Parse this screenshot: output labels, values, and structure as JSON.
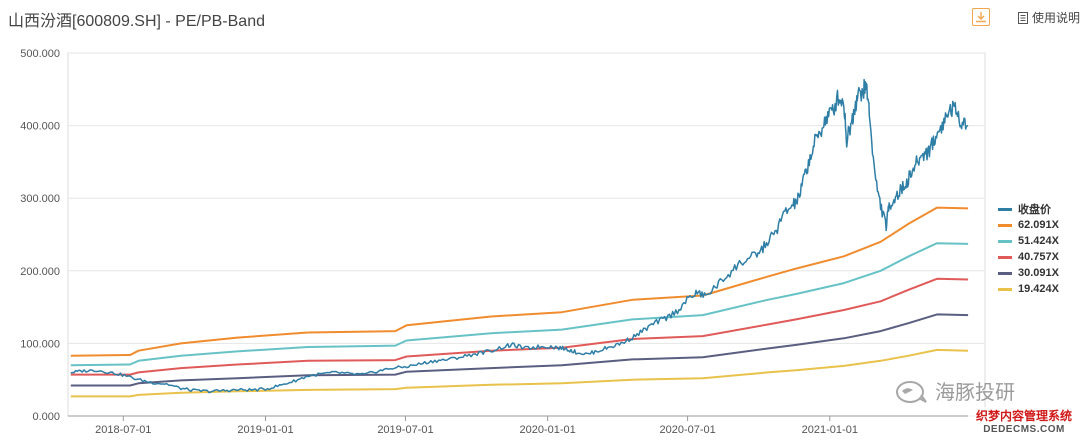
{
  "header": {
    "title": "山西汾酒[600809.SH] - PE/PB-Band",
    "download_icon": "download-icon",
    "help_label": "使用说明"
  },
  "watermark": {
    "text": "海豚投研",
    "site_cn": "织梦内容管理系统",
    "site_en": "DEDECMS.COM"
  },
  "chart_data": {
    "type": "line",
    "title": "",
    "xlabel": "",
    "ylabel": "",
    "ylim": [
      0,
      500
    ],
    "yticks": [
      "0.000",
      "100.000",
      "200.000",
      "300.000",
      "400.000",
      "500.000"
    ],
    "xlim": [
      2018.3,
      2021.55
    ],
    "xticks": [
      {
        "t": 2018.496,
        "label": "2018-07-01"
      },
      {
        "t": 2019.0,
        "label": "2019-01-01"
      },
      {
        "t": 2019.496,
        "label": "2019-07-01"
      },
      {
        "t": 2020.0,
        "label": "2020-01-01"
      },
      {
        "t": 2020.496,
        "label": "2020-07-01"
      },
      {
        "t": 2021.0,
        "label": "2021-01-01"
      }
    ],
    "grid": "horizontal",
    "legend_position": "right",
    "series": [
      {
        "name": "收盘价",
        "color": "#2e7ea6",
        "kind": "price",
        "points": [
          [
            2018.31,
            60
          ],
          [
            2018.35,
            62
          ],
          [
            2018.4,
            63
          ],
          [
            2018.45,
            60
          ],
          [
            2018.5,
            56
          ],
          [
            2018.55,
            50
          ],
          [
            2018.6,
            46
          ],
          [
            2018.65,
            44
          ],
          [
            2018.7,
            38
          ],
          [
            2018.75,
            35
          ],
          [
            2018.8,
            34
          ],
          [
            2018.85,
            35
          ],
          [
            2018.9,
            36
          ],
          [
            2018.95,
            36
          ],
          [
            2019.0,
            37
          ],
          [
            2019.05,
            42
          ],
          [
            2019.1,
            48
          ],
          [
            2019.15,
            55
          ],
          [
            2019.2,
            58
          ],
          [
            2019.25,
            60
          ],
          [
            2019.3,
            58
          ],
          [
            2019.35,
            57
          ],
          [
            2019.4,
            62
          ],
          [
            2019.45,
            66
          ],
          [
            2019.5,
            68
          ],
          [
            2019.55,
            72
          ],
          [
            2019.6,
            76
          ],
          [
            2019.65,
            78
          ],
          [
            2019.7,
            82
          ],
          [
            2019.75,
            86
          ],
          [
            2019.8,
            90
          ],
          [
            2019.85,
            96
          ],
          [
            2019.88,
            98
          ],
          [
            2019.92,
            93
          ],
          [
            2019.96,
            95
          ],
          [
            2020.0,
            96
          ],
          [
            2020.04,
            94
          ],
          [
            2020.07,
            92
          ],
          [
            2020.1,
            88
          ],
          [
            2020.14,
            85
          ],
          [
            2020.18,
            90
          ],
          [
            2020.22,
            95
          ],
          [
            2020.26,
            100
          ],
          [
            2020.3,
            108
          ],
          [
            2020.34,
            118
          ],
          [
            2020.38,
            128
          ],
          [
            2020.42,
            135
          ],
          [
            2020.46,
            145
          ],
          [
            2020.5,
            162
          ],
          [
            2020.53,
            170
          ],
          [
            2020.56,
            165
          ],
          [
            2020.6,
            180
          ],
          [
            2020.64,
            195
          ],
          [
            2020.68,
            210
          ],
          [
            2020.72,
            218
          ],
          [
            2020.75,
            225
          ],
          [
            2020.78,
            240
          ],
          [
            2020.81,
            255
          ],
          [
            2020.84,
            280
          ],
          [
            2020.87,
            290
          ],
          [
            2020.89,
            300
          ],
          [
            2020.91,
            330
          ],
          [
            2020.93,
            355
          ],
          [
            2020.95,
            380
          ],
          [
            2020.97,
            395
          ],
          [
            2020.99,
            412
          ],
          [
            2021.01,
            420
          ],
          [
            2021.03,
            440
          ],
          [
            2021.05,
            430
          ],
          [
            2021.06,
            380
          ],
          [
            2021.08,
            410
          ],
          [
            2021.09,
            430
          ],
          [
            2021.1,
            440
          ],
          [
            2021.12,
            450
          ],
          [
            2021.13,
            455
          ],
          [
            2021.14,
            420
          ],
          [
            2021.16,
            330
          ],
          [
            2021.18,
            290
          ],
          [
            2021.2,
            262
          ],
          [
            2021.21,
            290
          ],
          [
            2021.23,
            300
          ],
          [
            2021.25,
            310
          ],
          [
            2021.27,
            320
          ],
          [
            2021.29,
            335
          ],
          [
            2021.31,
            350
          ],
          [
            2021.33,
            360
          ],
          [
            2021.35,
            365
          ],
          [
            2021.37,
            380
          ],
          [
            2021.39,
            395
          ],
          [
            2021.41,
            410
          ],
          [
            2021.43,
            425
          ],
          [
            2021.45,
            418
          ],
          [
            2021.47,
            405
          ],
          [
            2021.49,
            400
          ]
        ]
      },
      {
        "name": "62.091X",
        "color": "#f08c2e",
        "kind": "band",
        "points": [
          [
            2018.31,
            83
          ],
          [
            2018.52,
            84
          ],
          [
            2018.55,
            90
          ],
          [
            2018.7,
            100
          ],
          [
            2018.9,
            108
          ],
          [
            2019.15,
            115
          ],
          [
            2019.46,
            117
          ],
          [
            2019.5,
            125
          ],
          [
            2019.8,
            137
          ],
          [
            2020.05,
            143
          ],
          [
            2020.3,
            160
          ],
          [
            2020.55,
            166
          ],
          [
            2020.78,
            192
          ],
          [
            2020.88,
            203
          ],
          [
            2021.05,
            220
          ],
          [
            2021.18,
            240
          ],
          [
            2021.28,
            265
          ],
          [
            2021.38,
            287
          ],
          [
            2021.49,
            286
          ]
        ]
      },
      {
        "name": "51.424X",
        "color": "#67c2c6",
        "kind": "band",
        "points": [
          [
            2018.31,
            70
          ],
          [
            2018.52,
            71
          ],
          [
            2018.55,
            76
          ],
          [
            2018.7,
            83
          ],
          [
            2018.9,
            89
          ],
          [
            2019.15,
            95
          ],
          [
            2019.46,
            97
          ],
          [
            2019.5,
            104
          ],
          [
            2019.8,
            114
          ],
          [
            2020.05,
            119
          ],
          [
            2020.3,
            133
          ],
          [
            2020.55,
            139
          ],
          [
            2020.78,
            160
          ],
          [
            2020.88,
            168
          ],
          [
            2021.05,
            183
          ],
          [
            2021.18,
            200
          ],
          [
            2021.28,
            220
          ],
          [
            2021.38,
            238
          ],
          [
            2021.49,
            237
          ]
        ]
      },
      {
        "name": "40.757X",
        "color": "#e05a5a",
        "kind": "band",
        "points": [
          [
            2018.31,
            57
          ],
          [
            2018.52,
            57
          ],
          [
            2018.55,
            60
          ],
          [
            2018.7,
            66
          ],
          [
            2018.9,
            71
          ],
          [
            2019.15,
            76
          ],
          [
            2019.46,
            77
          ],
          [
            2019.5,
            82
          ],
          [
            2019.8,
            90
          ],
          [
            2020.05,
            94
          ],
          [
            2020.3,
            106
          ],
          [
            2020.55,
            110
          ],
          [
            2020.78,
            126
          ],
          [
            2020.88,
            133
          ],
          [
            2021.05,
            146
          ],
          [
            2021.18,
            158
          ],
          [
            2021.28,
            174
          ],
          [
            2021.38,
            189
          ],
          [
            2021.49,
            188
          ]
        ]
      },
      {
        "name": "30.091X",
        "color": "#5a5e80",
        "kind": "band",
        "points": [
          [
            2018.31,
            42
          ],
          [
            2018.52,
            42
          ],
          [
            2018.55,
            45
          ],
          [
            2018.7,
            49
          ],
          [
            2018.9,
            52
          ],
          [
            2019.15,
            56
          ],
          [
            2019.46,
            57
          ],
          [
            2019.5,
            61
          ],
          [
            2019.8,
            66
          ],
          [
            2020.05,
            70
          ],
          [
            2020.3,
            78
          ],
          [
            2020.55,
            81
          ],
          [
            2020.78,
            93
          ],
          [
            2020.88,
            98
          ],
          [
            2021.05,
            107
          ],
          [
            2021.18,
            117
          ],
          [
            2021.28,
            128
          ],
          [
            2021.38,
            140
          ],
          [
            2021.49,
            139
          ]
        ]
      },
      {
        "name": "19.424X",
        "color": "#e8c24a",
        "kind": "band",
        "points": [
          [
            2018.31,
            27
          ],
          [
            2018.52,
            27
          ],
          [
            2018.55,
            29
          ],
          [
            2018.7,
            32
          ],
          [
            2018.9,
            34
          ],
          [
            2019.15,
            36
          ],
          [
            2019.46,
            37
          ],
          [
            2019.5,
            39
          ],
          [
            2019.8,
            43
          ],
          [
            2020.05,
            45
          ],
          [
            2020.3,
            50
          ],
          [
            2020.55,
            52
          ],
          [
            2020.78,
            60
          ],
          [
            2020.88,
            63
          ],
          [
            2021.05,
            69
          ],
          [
            2021.18,
            76
          ],
          [
            2021.28,
            83
          ],
          [
            2021.38,
            91
          ],
          [
            2021.49,
            90
          ]
        ]
      }
    ]
  }
}
